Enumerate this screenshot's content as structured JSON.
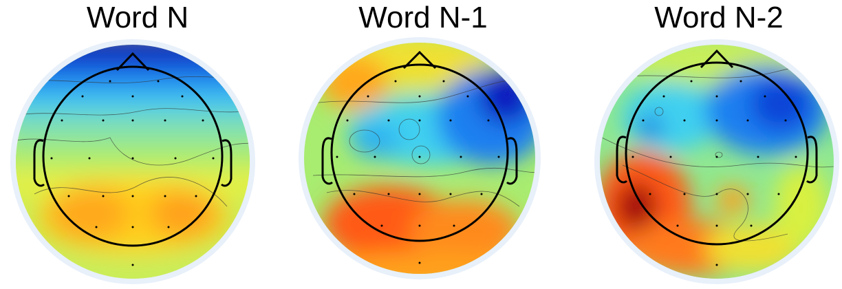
{
  "figure": {
    "panels": [
      {
        "title": "Word N",
        "map": "topomap-n"
      },
      {
        "title": "Word N-1",
        "map": "topomap-n1"
      },
      {
        "title": "Word N-2",
        "map": "topomap-n2"
      }
    ],
    "colors": {
      "halo": "#e8f0fa",
      "dark_blue": "#0a1fc0",
      "blue": "#1f7ff0",
      "cyan": "#3fd0f0",
      "green": "#8fe890",
      "yellow": "#f5f032",
      "orange": "#ff9a1a",
      "red": "#e8280f",
      "dark_red": "#a00010",
      "outline": "#000000"
    }
  }
}
